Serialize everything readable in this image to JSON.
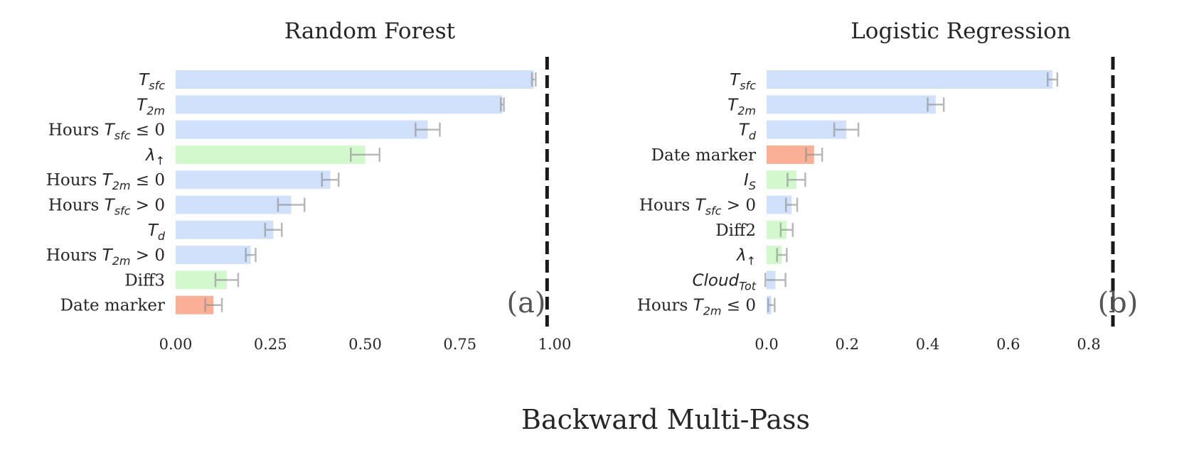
{
  "figure": {
    "suptitle": "Backward Multi-Pass"
  },
  "colors": {
    "blue": "#c9dcfb",
    "green": "#cdf7c6",
    "orange": "#f9a285",
    "error": "#8a8a8a",
    "dashed": "#1a1a1a",
    "text": "#262626",
    "panel_label": "#555555"
  },
  "chart_data": [
    {
      "type": "bar",
      "orientation": "horizontal",
      "title": "Random Forest",
      "panel_label": "(a)",
      "xlim": [
        0,
        1.0
      ],
      "xticks": [
        "0.00",
        "0.25",
        "0.50",
        "0.75",
        "1.00"
      ],
      "reference_line": {
        "x": 0.98,
        "style": "dashed"
      },
      "grid": false,
      "categories": [
        {
          "base": "T",
          "sub": "sfc",
          "prefix": "",
          "suffix": ""
        },
        {
          "base": "T",
          "sub": "2m",
          "prefix": "",
          "suffix": ""
        },
        {
          "base": "T",
          "sub": "sfc",
          "prefix": "Hours ",
          "suffix": " ≤ 0"
        },
        {
          "base": "λ",
          "sub": "↑",
          "prefix": "",
          "suffix": ""
        },
        {
          "base": "T",
          "sub": "2m",
          "prefix": "Hours ",
          "suffix": " ≤ 0"
        },
        {
          "base": "T",
          "sub": "sfc",
          "prefix": "Hours ",
          "suffix": " > 0"
        },
        {
          "base": "T",
          "sub": "d",
          "prefix": "",
          "suffix": ""
        },
        {
          "base": "T",
          "sub": "2m",
          "prefix": "Hours ",
          "suffix": " > 0"
        },
        {
          "base": "",
          "sub": "",
          "prefix": "Diff3",
          "suffix": ""
        },
        {
          "base": "",
          "sub": "",
          "prefix": "Date marker",
          "suffix": ""
        }
      ],
      "values": [
        0.945,
        0.862,
        0.665,
        0.5,
        0.408,
        0.305,
        0.258,
        0.198,
        0.135,
        0.1
      ],
      "errors": [
        0.005,
        0.004,
        0.032,
        0.038,
        0.022,
        0.035,
        0.022,
        0.013,
        0.03,
        0.022
      ],
      "groups": [
        "blue",
        "blue",
        "blue",
        "green",
        "blue",
        "blue",
        "blue",
        "blue",
        "green",
        "orange"
      ]
    },
    {
      "type": "bar",
      "orientation": "horizontal",
      "title": "Logistic Regression",
      "panel_label": "(b)",
      "xlim": [
        0,
        0.86
      ],
      "xticks": [
        "0.0",
        "0.2",
        "0.4",
        "0.6",
        "0.8"
      ],
      "reference_line": {
        "x": 0.86,
        "style": "dashed"
      },
      "grid": false,
      "categories": [
        {
          "base": "T",
          "sub": "sfc",
          "prefix": "",
          "suffix": ""
        },
        {
          "base": "T",
          "sub": "2m",
          "prefix": "",
          "suffix": ""
        },
        {
          "base": "T",
          "sub": "d",
          "prefix": "",
          "suffix": ""
        },
        {
          "base": "",
          "sub": "",
          "prefix": "Date marker",
          "suffix": ""
        },
        {
          "base": "I",
          "sub": "S",
          "prefix": "",
          "suffix": ""
        },
        {
          "base": "T",
          "sub": "sfc",
          "prefix": "Hours ",
          "suffix": " > 0"
        },
        {
          "base": "",
          "sub": "",
          "prefix": "Diff2",
          "suffix": ""
        },
        {
          "base": "λ",
          "sub": "↑",
          "prefix": "",
          "suffix": ""
        },
        {
          "base": "Cloud",
          "sub": "Tot",
          "prefix": "",
          "suffix": ""
        },
        {
          "base": "T",
          "sub": "2m",
          "prefix": "Hours ",
          "suffix": " ≤ 0"
        }
      ],
      "values": [
        0.71,
        0.42,
        0.198,
        0.118,
        0.074,
        0.062,
        0.05,
        0.038,
        0.022,
        0.012
      ],
      "errors": [
        0.012,
        0.02,
        0.03,
        0.02,
        0.022,
        0.014,
        0.015,
        0.012,
        0.025,
        0.008
      ],
      "groups": [
        "blue",
        "blue",
        "blue",
        "orange",
        "green",
        "blue",
        "green",
        "green",
        "blue",
        "blue"
      ]
    }
  ]
}
